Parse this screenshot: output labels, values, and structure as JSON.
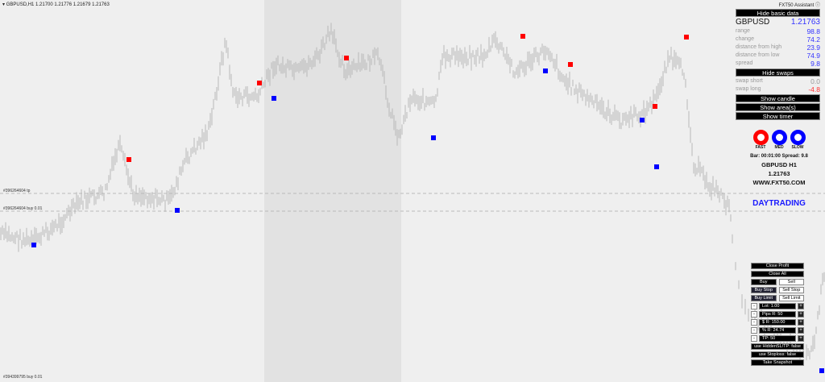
{
  "header": {
    "symbol_tf": "GBPUSD,H1",
    "ohlc": "1.21700 1.21776 1.21679 1.21763"
  },
  "assistant_title": "FXT50 Assistant",
  "chart_labels": {
    "tp_line": "#396264604 tp",
    "buy_line": "#396264604 buy 0.01",
    "bottom_order": "#394399795 buy 0.01"
  },
  "panel": {
    "hide_basic": "Hide basic data",
    "symbol": "GBPUSD",
    "price": "1.21763",
    "rows": [
      {
        "label": "range",
        "value": "98.8"
      },
      {
        "label": "change",
        "value": "74.2"
      },
      {
        "label": "distance from high",
        "value": "23.9"
      },
      {
        "label": "distance from low",
        "value": "74.9"
      },
      {
        "label": "spread",
        "value": "9.8"
      }
    ],
    "hide_swaps": "Hide swaps",
    "swaps": [
      {
        "label": "swap short",
        "value": "0.0"
      },
      {
        "label": "swap long",
        "value": "-4.8"
      }
    ],
    "show_candle": "Show candle",
    "show_areas": "Show area(s)",
    "show_timer": "Show timer"
  },
  "indicators": {
    "fast": "FAST",
    "med": "MED",
    "slow": "SLOW",
    "fast_color": "#ff0000",
    "med_color": "#0000ff",
    "slow_color": "#0000ff"
  },
  "info": {
    "bar": "Bar: 00:01:00 Spread: 9.8",
    "symbol": "GBPUSD H1",
    "price": "1.21763",
    "site": "WWW.FXT50.COM",
    "mode": "DAYTRADING"
  },
  "trade": {
    "close_profit": "Close Profit",
    "close_all": "Close All",
    "buy": "Buy",
    "sell": "Sell",
    "buy_stop": "Buy Stop",
    "sell_stop": "Sell Stop",
    "buy_limit": "Buy Limit",
    "sell_limit": "Sell Limit",
    "inputs": [
      "Lot: 1.00",
      "Pips R: 50",
      "$ R: 150.00",
      "% R: 24.74",
      "TP: 50"
    ],
    "hidden_sltp": "use HiddenSL/TP: false",
    "use_stoploss": "use Stoploss: false",
    "snapshot": "Take Snapshot"
  },
  "colors": {
    "buy_marker": "#0000ff",
    "sell_marker": "#ff0000",
    "accent": "#0000ff"
  }
}
